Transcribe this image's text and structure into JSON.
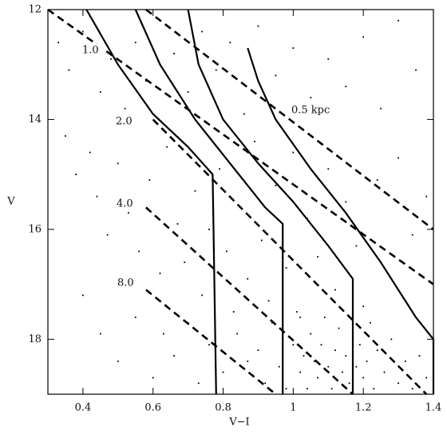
{
  "chart_data": {
    "type": "scatter",
    "x_label": "V−I",
    "y_label": "V",
    "xlim": [
      0.3,
      1.4
    ],
    "ylim": [
      12,
      19
    ],
    "y_inverted": true,
    "xticks": [
      0.4,
      0.6,
      0.8,
      1,
      1.2,
      1.4
    ],
    "yticks": [
      12,
      14,
      16,
      18
    ],
    "series": [
      {
        "type": "scatter",
        "color": "#000000",
        "x": [
          0.33,
          0.36,
          0.4,
          0.45,
          0.48,
          0.52,
          0.55,
          0.58,
          0.62,
          0.66,
          0.7,
          0.74,
          0.78,
          0.82,
          0.86,
          0.9,
          0.95,
          1.0,
          1.05,
          1.1,
          1.15,
          1.2,
          1.25,
          1.3,
          1.35,
          0.35,
          0.38,
          0.42,
          0.44,
          0.47,
          0.5,
          0.53,
          0.56,
          0.59,
          0.62,
          0.64,
          0.67,
          0.69,
          0.72,
          0.74,
          0.76,
          0.79,
          0.81,
          0.83,
          0.85,
          0.87,
          0.89,
          0.91,
          0.93,
          0.95,
          0.98,
          1.0,
          1.02,
          1.04,
          1.07,
          1.1,
          1.12,
          1.15,
          1.18,
          1.2,
          1.24,
          1.27,
          1.3,
          1.34,
          1.38,
          0.4,
          0.45,
          0.5,
          0.55,
          0.6,
          0.63,
          0.66,
          0.7,
          0.73,
          0.76,
          0.8,
          0.84,
          0.87,
          0.9,
          0.92,
          0.94,
          0.96,
          0.98,
          1.0,
          1.01,
          1.02,
          1.03,
          1.04,
          1.05,
          1.06,
          1.07,
          1.08,
          1.09,
          1.1,
          1.11,
          1.12,
          1.13,
          1.14,
          1.15,
          1.16,
          1.17,
          1.18,
          1.19,
          1.2,
          1.21,
          1.22,
          1.23,
          1.24,
          1.26,
          1.28,
          1.3,
          1.32,
          1.34,
          1.36,
          1.38
        ],
        "y": [
          12.6,
          13.1,
          12.4,
          13.5,
          12.9,
          13.8,
          12.6,
          13.3,
          12.2,
          12.8,
          13.5,
          12.4,
          13.1,
          12.6,
          13.9,
          12.3,
          13.2,
          12.7,
          13.6,
          12.9,
          13.4,
          12.5,
          13.8,
          12.2,
          13.1,
          14.3,
          15.0,
          14.6,
          15.4,
          16.1,
          14.8,
          15.7,
          16.4,
          15.1,
          16.8,
          14.5,
          15.9,
          16.6,
          15.3,
          17.2,
          16.0,
          14.9,
          16.4,
          17.5,
          15.6,
          16.9,
          14.4,
          16.2,
          17.3,
          15.2,
          16.7,
          14.6,
          17.6,
          15.8,
          16.5,
          14.9,
          17.1,
          15.5,
          16.3,
          17.4,
          15.1,
          16.8,
          14.7,
          16.1,
          15.4,
          17.2,
          17.9,
          18.4,
          17.6,
          18.7,
          17.9,
          18.3,
          17.7,
          18.8,
          18.1,
          18.6,
          17.9,
          18.4,
          18.2,
          18.8,
          17.7,
          18.5,
          18.9,
          18.1,
          17.5,
          18.6,
          18.3,
          18.9,
          17.9,
          18.4,
          18.7,
          18.1,
          17.6,
          18.5,
          18.9,
          18.2,
          17.8,
          18.6,
          18.3,
          18.8,
          17.9,
          18.5,
          18.1,
          18.7,
          18.4,
          17.7,
          18.9,
          18.2,
          18.6,
          18.0,
          18.8,
          18.4,
          18.9,
          18.3,
          18.7
        ]
      },
      {
        "type": "line",
        "style": "solid",
        "color": "#000000",
        "x": [
          0.41,
          0.5,
          0.6,
          0.7,
          0.77,
          0.78
        ],
        "y": [
          12.0,
          13.0,
          13.9,
          14.5,
          15.0,
          19.0
        ]
      },
      {
        "type": "line",
        "style": "solid",
        "color": "#000000",
        "x": [
          0.55,
          0.62,
          0.72,
          0.82,
          0.92,
          0.97,
          0.97
        ],
        "y": [
          12.0,
          13.0,
          14.0,
          14.8,
          15.6,
          15.9,
          19.0
        ]
      },
      {
        "type": "line",
        "style": "solid",
        "color": "#000000",
        "x": [
          0.7,
          0.73,
          0.8,
          0.9,
          1.0,
          1.1,
          1.17,
          1.17
        ],
        "y": [
          12.0,
          13.0,
          14.0,
          14.8,
          15.5,
          16.3,
          16.9,
          19.0
        ]
      },
      {
        "type": "line",
        "style": "solid",
        "color": "#000000",
        "x": [
          0.87,
          0.9,
          0.95,
          1.05,
          1.15,
          1.25,
          1.35,
          1.4,
          1.4
        ],
        "y": [
          12.7,
          13.3,
          14.0,
          14.9,
          15.7,
          16.6,
          17.6,
          18.0,
          19.0
        ]
      },
      {
        "type": "line",
        "style": "dashed",
        "color": "#000000",
        "name": "0.5 kpc",
        "x": [
          0.58,
          1.4
        ],
        "y": [
          12.0,
          16.0
        ]
      },
      {
        "type": "line",
        "style": "dashed",
        "color": "#000000",
        "name": "1.0",
        "x": [
          0.3,
          1.4
        ],
        "y": [
          12.0,
          17.0
        ]
      },
      {
        "type": "line",
        "style": "dashed",
        "color": "#000000",
        "name": "2.0",
        "x": [
          0.6,
          1.38
        ],
        "y": [
          14.0,
          19.0
        ]
      },
      {
        "type": "line",
        "style": "dashed",
        "color": "#000000",
        "name": "4.0",
        "x": [
          0.58,
          1.17
        ],
        "y": [
          15.6,
          19.0
        ]
      },
      {
        "type": "line",
        "style": "dashed",
        "color": "#000000",
        "name": "8.0",
        "x": [
          0.58,
          0.95
        ],
        "y": [
          17.1,
          19.0
        ]
      }
    ]
  }
}
